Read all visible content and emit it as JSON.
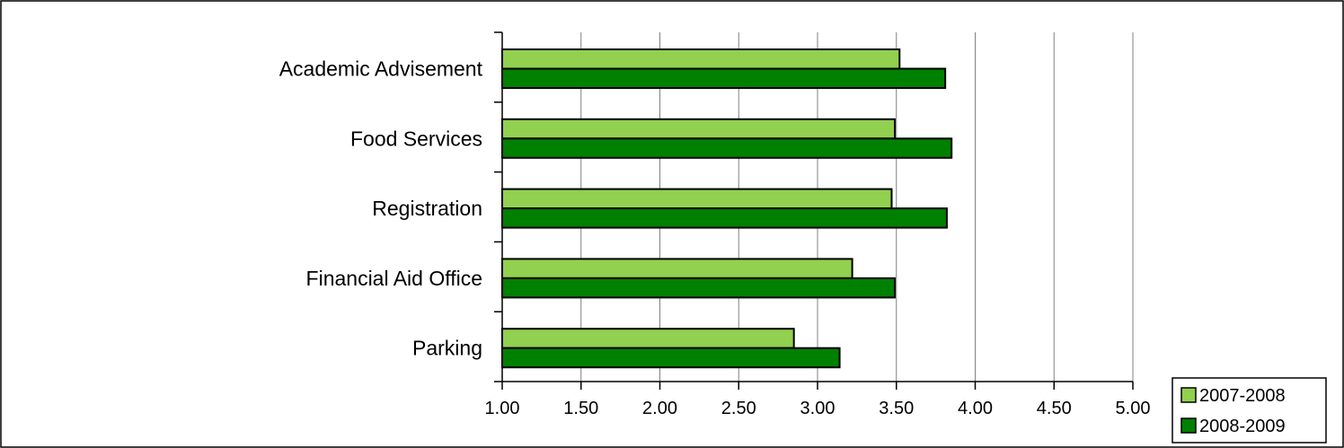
{
  "chart_data": {
    "type": "bar",
    "orientation": "horizontal",
    "categories": [
      "Academic Advisement",
      "Food Services",
      "Registration",
      "Financial Aid Office",
      "Parking"
    ],
    "series": [
      {
        "name": "2007-2008",
        "color": "#92d050",
        "values": [
          3.52,
          3.49,
          3.47,
          3.22,
          2.85
        ]
      },
      {
        "name": "2008-2009",
        "color": "#008000",
        "values": [
          3.81,
          3.85,
          3.82,
          3.49,
          3.14
        ]
      }
    ],
    "xlim": [
      1.0,
      5.0
    ],
    "x_ticks": [
      "1.00",
      "1.50",
      "2.00",
      "2.50",
      "3.00",
      "3.50",
      "4.00",
      "4.50",
      "5.00"
    ],
    "x_tick_values": [
      1.0,
      1.5,
      2.0,
      2.5,
      3.0,
      3.5,
      4.0,
      4.5,
      5.0
    ],
    "grid": "vertical major gridlines",
    "legend_position": "bottom-right",
    "title": "",
    "xlabel": "",
    "ylabel": ""
  }
}
